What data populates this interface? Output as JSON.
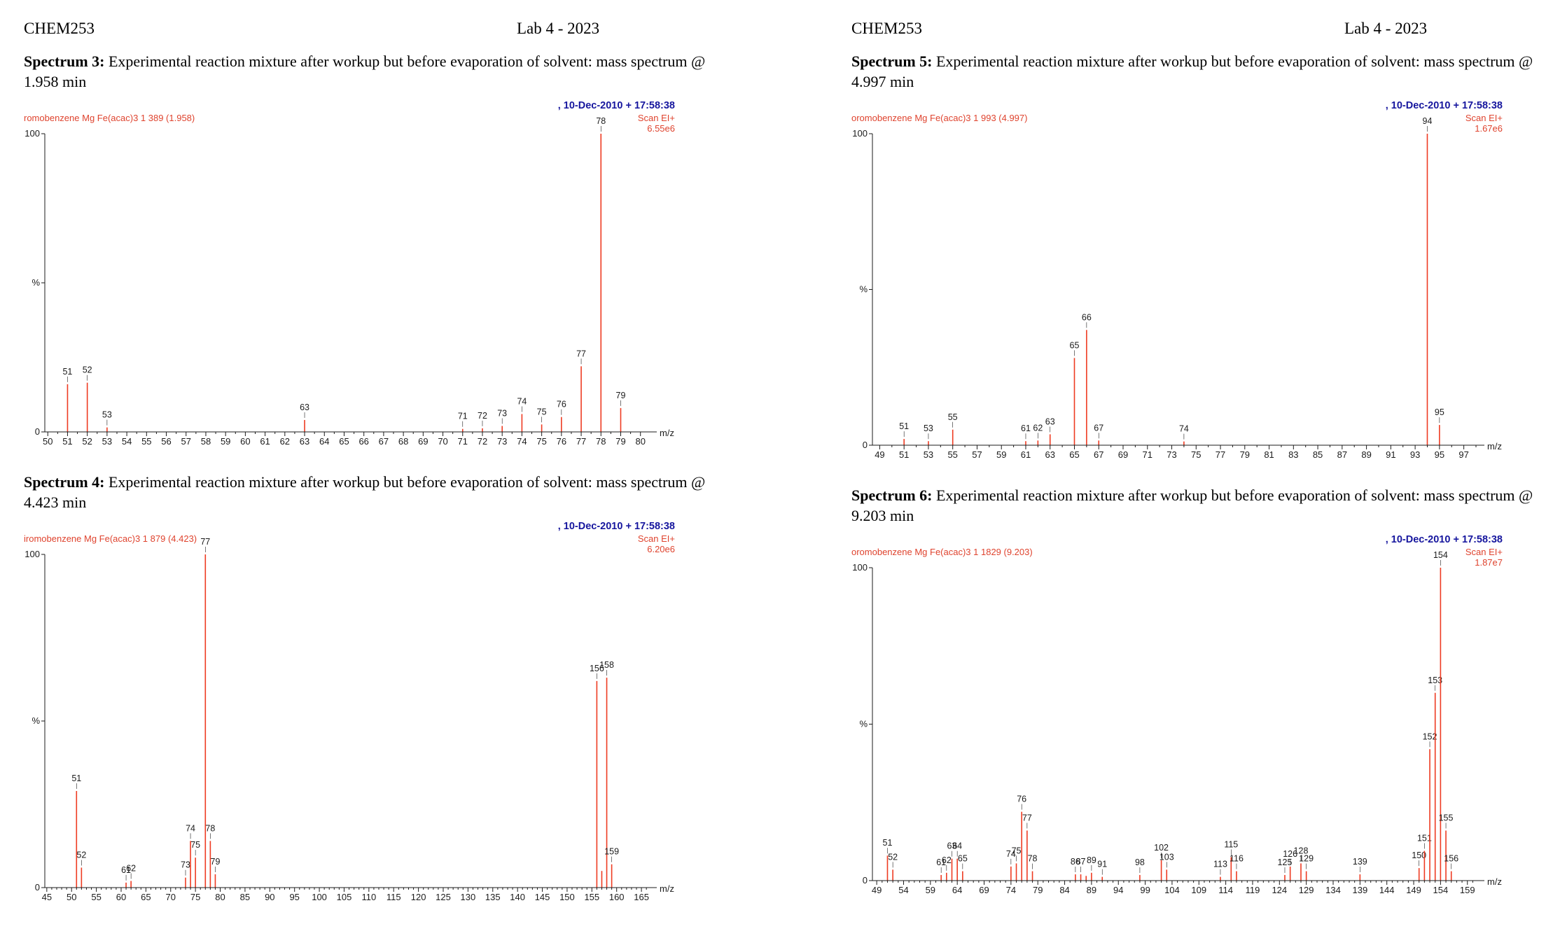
{
  "pages": [
    {
      "course": "CHEM253",
      "lab_title": "Lab 4 - 2023"
    },
    {
      "course": "CHEM253",
      "lab_title": "Lab 4 - 2023"
    }
  ],
  "spectra": [
    {
      "label": "Spectrum 3:",
      "description": "Experimental reaction mixture after workup but before evaporation of solvent: mass spectrum @ 1.958 min"
    },
    {
      "label": "Spectrum 4:",
      "description": "Experimental reaction mixture after workup but before evaporation of solvent: mass spectrum @ 4.423 min"
    },
    {
      "label": "Spectrum 5:",
      "description": "Experimental reaction mixture after workup but before evaporation of solvent: mass spectrum @ 4.997 min"
    },
    {
      "label": "Spectrum 6:",
      "description": "Experimental reaction mixture after workup but before evaporation of solvent: mass spectrum @ 9.203 min"
    }
  ],
  "colors": {
    "peak": "#ee3b22",
    "info_text": "#df432e",
    "timestamp": "#16169e",
    "axis": "#1b1b1b",
    "label_text": "#1b1b1b"
  },
  "chart_data": [
    {
      "type": "bar",
      "subtype": "mass-spectrum",
      "title": "Spectrum 3 mass spectrum @ 1.958 min",
      "sample_info": "romobenzene Mg Fe(acac)3 1 389 (1.958)",
      "timestamp": ",  10-Dec-2010 + 17:58:38",
      "scan_label": "Scan EI+",
      "intensity_label": "6.55e6",
      "xlabel": "m/z",
      "ylabel": "%",
      "y_ticks": [
        "100",
        "%",
        "0"
      ],
      "ylim": [
        0,
        100
      ],
      "x_axis": {
        "min": 49.85,
        "max": 80.4,
        "label_start": 50,
        "label_end": 80,
        "label_step": 1,
        "minor_step": 0.5
      },
      "peaks": [
        {
          "mz": 51,
          "rel": 16
        },
        {
          "mz": 52,
          "rel": 16.5
        },
        {
          "mz": 53,
          "rel": 1.5
        },
        {
          "mz": 63,
          "rel": 4
        },
        {
          "mz": 71,
          "rel": 1
        },
        {
          "mz": 72,
          "rel": 1.2
        },
        {
          "mz": 73,
          "rel": 2
        },
        {
          "mz": 74,
          "rel": 6
        },
        {
          "mz": 75,
          "rel": 2.5
        },
        {
          "mz": 76,
          "rel": 5
        },
        {
          "mz": 77,
          "rel": 22
        },
        {
          "mz": 78,
          "rel": 100
        },
        {
          "mz": 79,
          "rel": 8
        }
      ]
    },
    {
      "type": "bar",
      "subtype": "mass-spectrum",
      "title": "Spectrum 4 mass spectrum @ 4.423 min",
      "sample_info": "iromobenzene Mg Fe(acac)3 1 879 (4.423)",
      "timestamp": ",  10-Dec-2010 + 17:58:38",
      "scan_label": "Scan EI+",
      "intensity_label": "6.20e6",
      "xlabel": "m/z",
      "ylabel": "%",
      "y_ticks": [
        "100",
        "%",
        "0"
      ],
      "ylim": [
        0,
        100
      ],
      "x_axis": {
        "min": 44.6,
        "max": 166.4,
        "label_start": 45,
        "label_end": 165,
        "label_step": 5,
        "minor_step": 1
      },
      "peaks": [
        {
          "mz": 51,
          "rel": 29
        },
        {
          "mz": 52,
          "rel": 6
        },
        {
          "mz": 61,
          "rel": 1.5
        },
        {
          "mz": 62,
          "rel": 2
        },
        {
          "mz": 73,
          "rel": 3
        },
        {
          "mz": 74,
          "rel": 14
        },
        {
          "mz": 75,
          "rel": 9
        },
        {
          "mz": 77,
          "rel": 100
        },
        {
          "mz": 78,
          "rel": 14
        },
        {
          "mz": 79,
          "rel": 4
        },
        {
          "mz": 156,
          "rel": 62
        },
        {
          "mz": 157,
          "rel": 5,
          "label": false
        },
        {
          "mz": 158,
          "rel": 63
        },
        {
          "mz": 159,
          "rel": 7
        }
      ]
    },
    {
      "type": "bar",
      "subtype": "mass-spectrum",
      "title": "Spectrum 5 mass spectrum @ 4.997 min",
      "sample_info": "oromobenzene Mg Fe(acac)3 1 993 (4.997)",
      "timestamp": ",  10-Dec-2010 + 17:58:38",
      "scan_label": "Scan EI+",
      "intensity_label": "1.67e6",
      "xlabel": "m/z",
      "ylabel": "%",
      "y_ticks": [
        "100",
        "%",
        "0"
      ],
      "ylim": [
        0,
        100
      ],
      "x_axis": {
        "min": 48.4,
        "max": 98.0,
        "label_start": 49,
        "label_end": 97,
        "label_step": 2,
        "minor_step": 1
      },
      "peaks": [
        {
          "mz": 51,
          "rel": 2
        },
        {
          "mz": 53,
          "rel": 1.3
        },
        {
          "mz": 55,
          "rel": 5
        },
        {
          "mz": 61,
          "rel": 1.3
        },
        {
          "mz": 62,
          "rel": 1.5
        },
        {
          "mz": 63,
          "rel": 3.5
        },
        {
          "mz": 65,
          "rel": 28
        },
        {
          "mz": 66,
          "rel": 37
        },
        {
          "mz": 67,
          "rel": 1.5
        },
        {
          "mz": 74,
          "rel": 1.2
        },
        {
          "mz": 94,
          "rel": 100
        },
        {
          "mz": 95,
          "rel": 6.5
        }
      ]
    },
    {
      "type": "bar",
      "subtype": "mass-spectrum",
      "title": "Spectrum 6 mass spectrum @ 9.203 min",
      "sample_info": "oromobenzene Mg Fe(acac)3 1 1829 (9.203)",
      "timestamp": ",  10-Dec-2010 + 17:58:38",
      "scan_label": "Scan EI+",
      "intensity_label": "1.87e7",
      "xlabel": "m/z",
      "ylabel": "%",
      "y_ticks": [
        "100",
        "%",
        "0"
      ],
      "ylim": [
        0,
        100
      ],
      "x_axis": {
        "min": 48.2,
        "max": 160.6,
        "label_start": 49,
        "label_end": 159,
        "label_step": 5,
        "minor_step": 1
      },
      "peaks": [
        {
          "mz": 51,
          "rel": 8
        },
        {
          "mz": 52,
          "rel": 3.5
        },
        {
          "mz": 61,
          "rel": 1.8
        },
        {
          "mz": 62,
          "rel": 2.5
        },
        {
          "mz": 63,
          "rel": 7
        },
        {
          "mz": 64,
          "rel": 7
        },
        {
          "mz": 65,
          "rel": 3
        },
        {
          "mz": 74,
          "rel": 4.5
        },
        {
          "mz": 75,
          "rel": 5.5
        },
        {
          "mz": 76,
          "rel": 22
        },
        {
          "mz": 77,
          "rel": 16
        },
        {
          "mz": 78,
          "rel": 3
        },
        {
          "mz": 86,
          "rel": 2
        },
        {
          "mz": 87,
          "rel": 2
        },
        {
          "mz": 88,
          "rel": 1.5,
          "label": false
        },
        {
          "mz": 89,
          "rel": 2.5
        },
        {
          "mz": 91,
          "rel": 1.2
        },
        {
          "mz": 98,
          "rel": 1.8
        },
        {
          "mz": 102,
          "rel": 6.5
        },
        {
          "mz": 103,
          "rel": 3.5
        },
        {
          "mz": 113,
          "rel": 1.2
        },
        {
          "mz": 115,
          "rel": 7.5
        },
        {
          "mz": 116,
          "rel": 3
        },
        {
          "mz": 125,
          "rel": 1.8
        },
        {
          "mz": 126,
          "rel": 4.5
        },
        {
          "mz": 128,
          "rel": 5.5
        },
        {
          "mz": 129,
          "rel": 3
        },
        {
          "mz": 139,
          "rel": 2
        },
        {
          "mz": 150,
          "rel": 4
        },
        {
          "mz": 151,
          "rel": 9.5
        },
        {
          "mz": 152,
          "rel": 42
        },
        {
          "mz": 153,
          "rel": 60
        },
        {
          "mz": 154,
          "rel": 100
        },
        {
          "mz": 155,
          "rel": 16
        },
        {
          "mz": 156,
          "rel": 3
        }
      ]
    }
  ]
}
